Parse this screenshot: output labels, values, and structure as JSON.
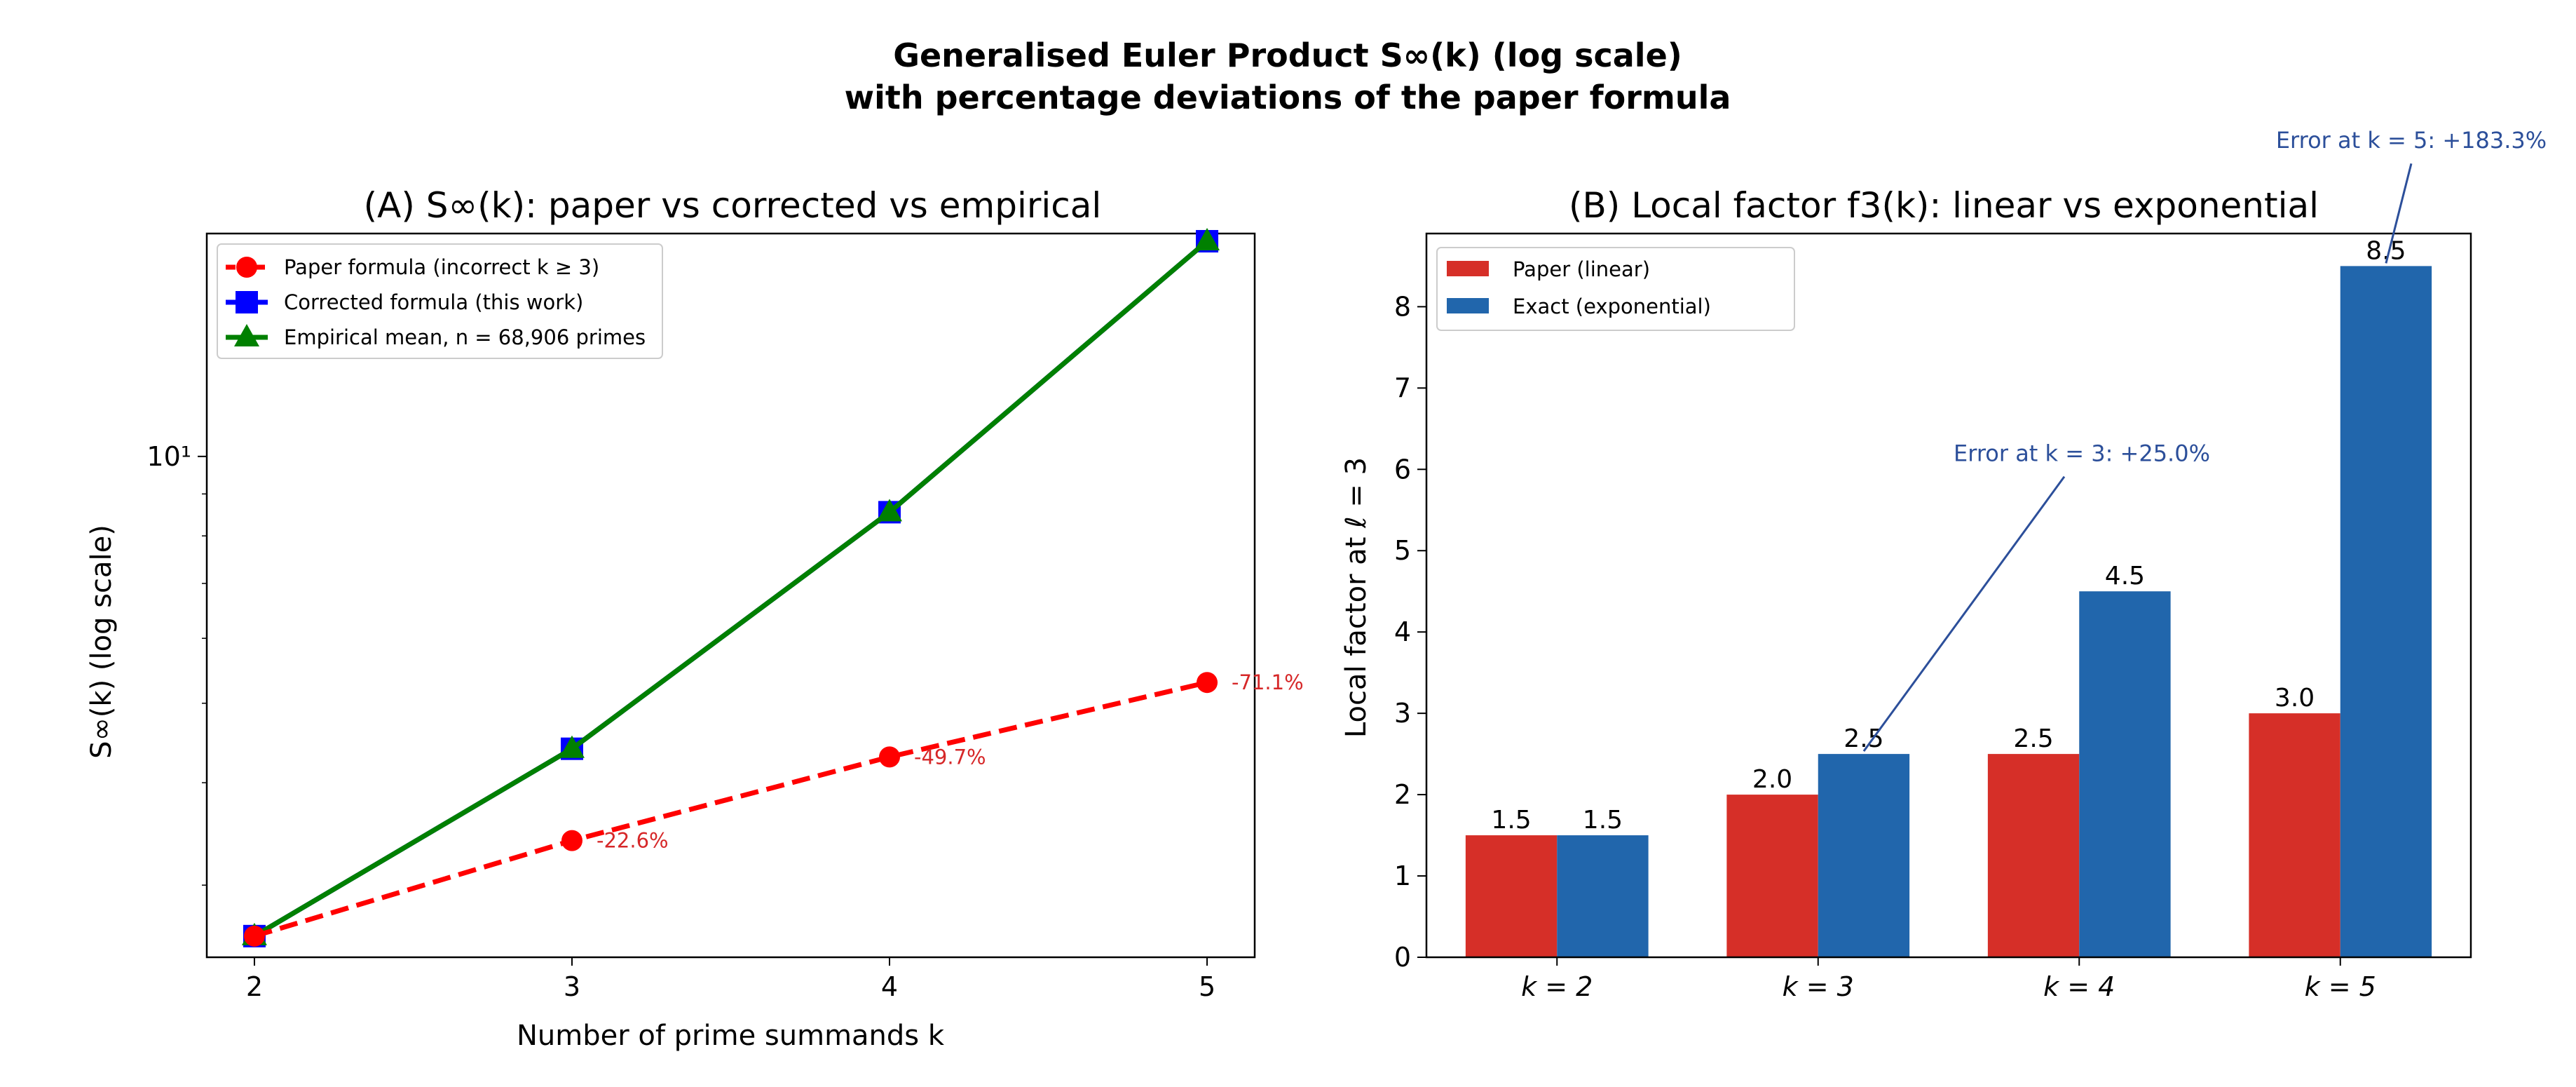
{
  "figure": {
    "title_line1": "Generalised Euler Product S∞(k) (log scale)",
    "title_line2": "with percentage deviations of the paper formula"
  },
  "chart_data": [
    {
      "type": "line",
      "title": "(A) S∞(k): paper vs corrected vs empirical",
      "xlabel": "Number of prime summands k",
      "ylabel": "S∞(k) (log scale)",
      "yscale": "log",
      "x": [
        2,
        3,
        4,
        5
      ],
      "xlim": [
        1.85,
        5.15
      ],
      "ylim": [
        2.45,
        18.7
      ],
      "xticks": [
        "2",
        "3",
        "4",
        "5"
      ],
      "yticks": [
        {
          "value": 10,
          "label": "10¹"
        }
      ],
      "grid": false,
      "legend_position": "top-left",
      "series": [
        {
          "name": "Paper formula (incorrect k ≥ 3)",
          "values": [
            2.6,
            3.4,
            4.3,
            5.3
          ],
          "color": "#ff0000",
          "marker": "circle",
          "linestyle": "dashed"
        },
        {
          "name": "Corrected formula (this work)",
          "values": [
            2.6,
            4.4,
            8.55,
            18.3
          ],
          "color": "#0000ff",
          "marker": "square",
          "linestyle": "solid"
        },
        {
          "name": "Empirical mean, n = 68,906 primes",
          "values": [
            2.6,
            4.4,
            8.55,
            18.3
          ],
          "color": "#008000",
          "marker": "triangle",
          "linestyle": "solid"
        }
      ],
      "annotations": [
        {
          "x": 3,
          "series": 0,
          "text": "-22.6%"
        },
        {
          "x": 4,
          "series": 0,
          "text": "-49.7%"
        },
        {
          "x": 5,
          "series": 0,
          "text": "-71.1%"
        }
      ]
    },
    {
      "type": "bar",
      "title": "(B) Local factor f3(k): linear vs exponential",
      "xlabel": "",
      "ylabel": "Local factor at ℓ = 3",
      "categories": [
        "k = 2",
        "k = 3",
        "k = 4",
        "k = 5"
      ],
      "ylim": [
        0,
        8.9
      ],
      "yticks": [
        0,
        1,
        2,
        3,
        4,
        5,
        6,
        7,
        8
      ],
      "grid": false,
      "legend_position": "top-left",
      "series": [
        {
          "name": "Paper (linear)",
          "values": [
            1.5,
            2.0,
            2.5,
            3.0
          ],
          "labels": [
            "1.5",
            "2.0",
            "2.5",
            "3.0"
          ],
          "color": "#d62f28"
        },
        {
          "name": "Exact (exponential)",
          "values": [
            1.5,
            2.5,
            4.5,
            8.5
          ],
          "labels": [
            "1.5",
            "2.5",
            "4.5",
            "8.5"
          ],
          "color": "#2166ac"
        }
      ],
      "annotations": [
        {
          "category": "k = 3",
          "series": 1,
          "text": "Error at k = 3: +25.0%",
          "text_y": 6.1
        },
        {
          "category": "k = 5",
          "series": 1,
          "text": "Error at k = 5: +183.3%",
          "text_y": 9.95
        }
      ]
    }
  ]
}
